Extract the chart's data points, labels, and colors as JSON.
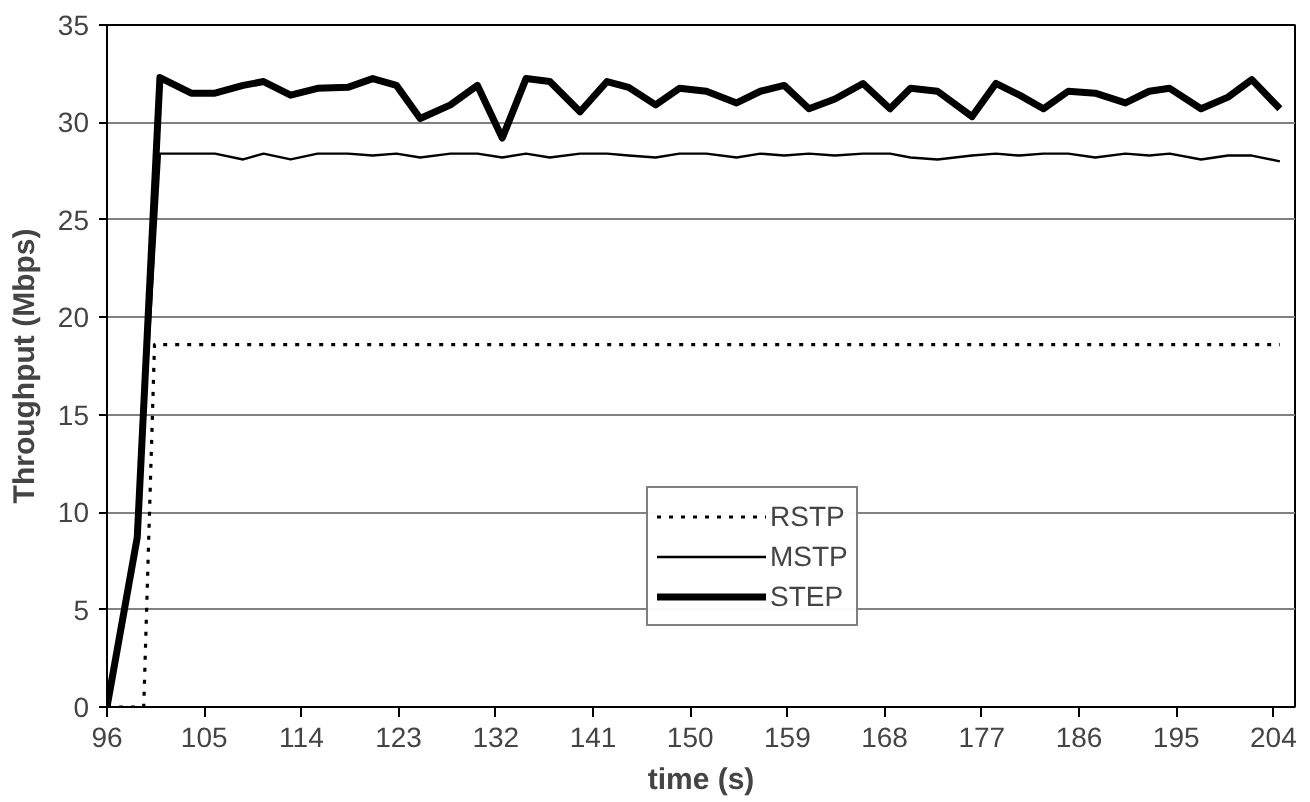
{
  "chart_data": {
    "type": "line",
    "xlabel": "time (s)",
    "ylabel": "Throughput (Mbps)",
    "xlim": [
      96,
      206
    ],
    "xticks": [
      96,
      105,
      114,
      123,
      132,
      141,
      150,
      159,
      168,
      177,
      186,
      195,
      204
    ],
    "ylim": [
      0,
      35
    ],
    "yticks": [
      0,
      5,
      10,
      15,
      20,
      25,
      30,
      35
    ],
    "grid": "y",
    "legend": "bottom",
    "marker": "none",
    "series": [
      {
        "name": "RSTP",
        "color": "#000000",
        "line_style": "dotted",
        "x": [
          96,
          99.4,
          100.4,
          204.6
        ],
        "values": [
          0,
          0,
          18.6,
          18.6
        ]
      },
      {
        "name": "MSTP",
        "color": "#000000",
        "line_style": "solid",
        "x": [
          96,
          98.8,
          100.9,
          103.8,
          106.0,
          108.6,
          110.5,
          113.0,
          115.5,
          118.3,
          120.6,
          122.8,
          125.0,
          127.8,
          130.3,
          132.6,
          134.8,
          137.0,
          139.8,
          142.3,
          144.3,
          146.8,
          149.0,
          151.5,
          154.3,
          156.5,
          158.7,
          161.0,
          163.4,
          166.0,
          168.5,
          170.4,
          172.9,
          176.1,
          178.3,
          180.5,
          182.7,
          185.0,
          187.5,
          190.3,
          192.5,
          194.4,
          197.3,
          199.8,
          202.0,
          204.6
        ],
        "values": [
          0,
          8.7,
          28.4,
          28.4,
          28.4,
          28.1,
          28.4,
          28.1,
          28.4,
          28.4,
          28.3,
          28.4,
          28.2,
          28.4,
          28.4,
          28.2,
          28.4,
          28.2,
          28.4,
          28.4,
          28.3,
          28.2,
          28.4,
          28.4,
          28.2,
          28.4,
          28.3,
          28.4,
          28.3,
          28.4,
          28.4,
          28.2,
          28.1,
          28.3,
          28.4,
          28.3,
          28.4,
          28.4,
          28.2,
          28.4,
          28.3,
          28.4,
          28.1,
          28.3,
          28.3,
          28.0
        ]
      },
      {
        "name": "STEP",
        "color": "#000000",
        "line_style": "solid",
        "x": [
          96,
          98.8,
          100.9,
          103.8,
          106.0,
          108.6,
          110.5,
          113.0,
          115.5,
          118.3,
          120.6,
          122.8,
          125.0,
          127.8,
          130.3,
          132.6,
          134.8,
          137.0,
          139.8,
          142.3,
          144.3,
          146.8,
          149.0,
          151.5,
          154.3,
          156.5,
          158.7,
          161.0,
          163.4,
          166.0,
          168.5,
          170.4,
          172.9,
          176.1,
          178.3,
          180.5,
          182.7,
          185.0,
          187.5,
          190.3,
          192.5,
          194.4,
          197.3,
          199.8,
          202.0,
          204.6
        ],
        "values": [
          0,
          8.7,
          32.3,
          31.5,
          31.5,
          31.9,
          32.1,
          31.4,
          31.75,
          31.8,
          32.25,
          31.9,
          30.2,
          30.9,
          31.9,
          29.2,
          32.25,
          32.1,
          30.55,
          32.1,
          31.8,
          30.9,
          31.75,
          31.6,
          31.0,
          31.6,
          31.9,
          30.7,
          31.2,
          32.0,
          30.7,
          31.75,
          31.6,
          30.3,
          32.0,
          31.4,
          30.7,
          31.6,
          31.5,
          31.0,
          31.6,
          31.75,
          30.7,
          31.3,
          32.2,
          30.7
        ]
      }
    ]
  }
}
